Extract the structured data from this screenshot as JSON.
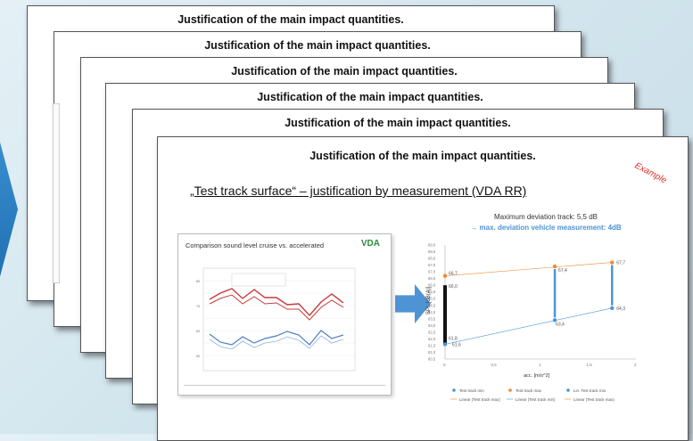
{
  "slide_title": "Justification of the main impact quantities.",
  "example_label": "Example",
  "subtitle": "„Test track surface“ – justification by measurement (VDA RR)",
  "left_chart": {
    "title": "Comparison sound level cruise vs. accelerated",
    "logo": "VDA"
  },
  "right_chart": {
    "header_line1": "Maximum deviation track: 5,5 dB",
    "header_line2": "→ max. deviation vehicle measurement: 4dB",
    "ylabel": "SPL [dB(A)]",
    "xlabel": "acc. [m/s^2]",
    "y_ticks": [
      "69,0",
      "68,5",
      "68,0",
      "67,5",
      "67,0",
      "66,5",
      "66,0",
      "65,5",
      "65,0",
      "64,5",
      "64,0",
      "63,5",
      "63,0",
      "62,5",
      "62,0",
      "61,5",
      "61,0",
      "60,5"
    ],
    "x_ticks": [
      "0",
      "0,5",
      "1",
      "1,5",
      "2"
    ],
    "labels": {
      "a": "66,7",
      "b": "66,0",
      "c": "61,6",
      "d": "61,8",
      "e": "67,4",
      "f": "63,4",
      "g": "67,7",
      "h": "64,3"
    },
    "legend": [
      "Test track min",
      "Test track max",
      "Lin. Test track min",
      "Linear (Test track max)",
      "Linear (Test track min)",
      "Linear (Test track max)"
    ]
  },
  "chart_data": {
    "type": "scatter",
    "xlabel": "acc. [m/s^2]",
    "ylabel": "SPL [dB(A)]",
    "xlim": [
      0,
      2
    ],
    "ylim": [
      60.5,
      69.0
    ],
    "series": [
      {
        "name": "Test track min",
        "points": [
          [
            0,
            61.6
          ],
          [
            1.15,
            63.4
          ],
          [
            1.75,
            64.3
          ]
        ]
      },
      {
        "name": "Test track max",
        "points": [
          [
            0,
            66.7
          ],
          [
            1.15,
            67.4
          ],
          [
            1.75,
            67.7
          ]
        ]
      }
    ]
  },
  "colors": {
    "min": "#4e94d5",
    "max": "#f08a2e",
    "arrow": "#4e94d5"
  }
}
